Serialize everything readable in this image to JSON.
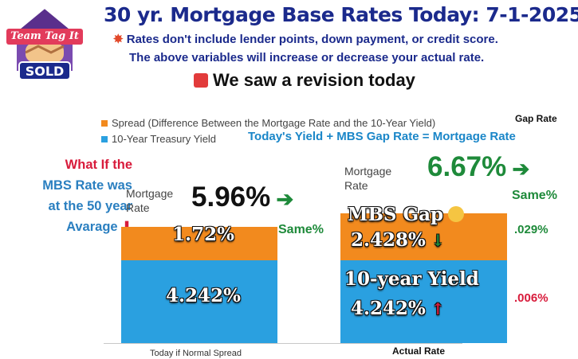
{
  "logo": {
    "text_top": "Team Tag It",
    "text_bottom": "SOLD"
  },
  "header": {
    "title": "30 yr. Mortgage Base Rates Today: 7-1-2025",
    "subtitle_line1": "Rates don't include lender points, down payment, or credit score.",
    "subtitle_line2": "The above variables will increase or decrease your actual rate.",
    "revision": "We saw a revision today"
  },
  "formula": "Today's  Yield +  MBS Gap Rate = Mortgage Rate",
  "gap_header": "Gap Rate",
  "what_if": [
    "What If the",
    "MBS Rate was",
    "at the 50 year",
    "Avarage"
  ],
  "chart_data": {
    "type": "bar",
    "stacked": true,
    "categories": [
      "Today if Normal Spread",
      "Actual Rate"
    ],
    "series": [
      {
        "name": "10-Year Treasury Yield",
        "values": [
          4.242,
          4.242
        ],
        "color": "#2aa0e0"
      },
      {
        "name": "Spread (Difference Between the Mortgage Rate and the 10-Year Yield)",
        "values": [
          1.72,
          2.428
        ],
        "color": "#f28a1e"
      }
    ],
    "legend": [
      "Spread (Difference Between the Mortgage Rate and the 10-Year Yield)",
      "10-Year Treasury Yield"
    ],
    "legend_position": "top-left",
    "bar1": {
      "label": "Mortgage\nRate",
      "total": "5.96%",
      "spread_label": "1.72%",
      "yield_label": "4.242%",
      "change": "Same%"
    },
    "bar2": {
      "label": "Mortgage\nRate",
      "total": "6.67%",
      "total_change": "Same%",
      "gap_title": "MBS Gap",
      "gap_value": "2.428%",
      "gap_change": ".029%",
      "yield_title": "10-year Yield",
      "yield_value": "4.242%",
      "yield_change": ".006%"
    }
  }
}
